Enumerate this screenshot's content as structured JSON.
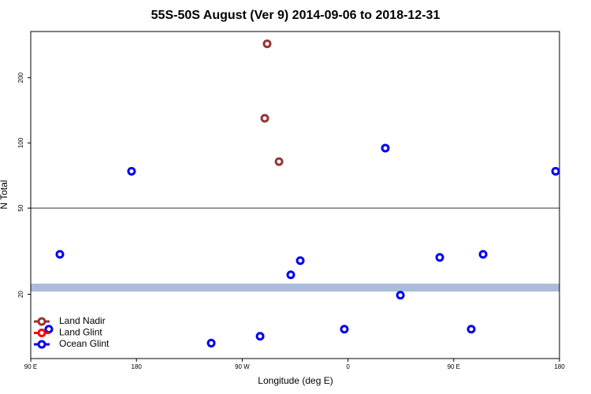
{
  "chart_data": {
    "type": "scatter",
    "title": "55S-50S August (Ver 9)   2014-09-06 to 2018-12-31",
    "x_label": "Longitude (deg E)",
    "y_label": "N Total",
    "log_y": true,
    "xlim": [
      90,
      540
    ],
    "ylim": [
      10.1,
      327
    ],
    "xticks": [
      {
        "value": 90,
        "label": "90 E"
      },
      180,
      {
        "value": 270,
        "label": "90 W"
      },
      {
        "value": 360,
        "label": "0"
      },
      {
        "value": 450,
        "label": "90 E"
      },
      {
        "value": 540,
        "label": "180"
      }
    ],
    "yticks": [
      20,
      50,
      100,
      200
    ],
    "reference_line": 50,
    "reference_band": [
      20.6,
      22.4
    ],
    "band_color": "#a9bcd9",
    "legend_position": "bottom-left",
    "series": [
      {
        "name": "Land Nadir",
        "color": "#993333",
        "x": [
          291.2,
          289.2,
          301.3
        ],
        "values": [
          287,
          130,
          82
        ]
      },
      {
        "name": "Land Glint",
        "color": "#ff0000",
        "x": [],
        "values": []
      },
      {
        "name": "Ocean Glint",
        "color": "#0000ee",
        "x": [
          105.4,
          114.8,
          175.8,
          243.6,
          285.2,
          311.3,
          319.4,
          356.9,
          391.8,
          404.6,
          438.1,
          464.9,
          475.0,
          536.7
        ],
        "values": [
          13.8,
          30.6,
          74,
          11.9,
          12.8,
          24.6,
          28.6,
          13.8,
          94.6,
          19.8,
          29.6,
          13.8,
          30.6,
          74
        ]
      }
    ]
  }
}
